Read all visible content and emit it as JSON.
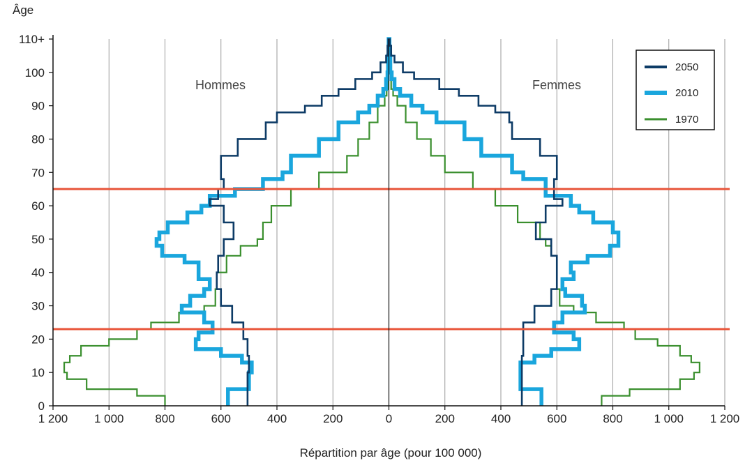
{
  "chart_data": {
    "type": "line",
    "title": "",
    "ylabel": "Âge",
    "xlabel": "Répartition par âge (pour 100 000)",
    "left_label": "Hommes",
    "right_label": "Femmes",
    "xlim": [
      -1200,
      1200
    ],
    "ylim": [
      0,
      110
    ],
    "x_ticks": [
      -1200,
      -1000,
      -800,
      -600,
      -400,
      -200,
      0,
      200,
      400,
      600,
      800,
      1000,
      1200
    ],
    "x_tick_labels": [
      "1 200",
      "1 000",
      "800",
      "600",
      "400",
      "200",
      "0",
      "200",
      "400",
      "600",
      "800",
      "1 000",
      "1 200"
    ],
    "y_ticks": [
      0,
      10,
      20,
      30,
      40,
      50,
      60,
      70,
      80,
      90,
      100,
      110
    ],
    "y_tick_labels": [
      "0",
      "10",
      "20",
      "30",
      "40",
      "50",
      "60",
      "70",
      "80",
      "90",
      "100",
      "110+"
    ],
    "grid": "vertical",
    "legend_position": "top-right",
    "reference_lines_age": [
      65,
      23
    ],
    "reference_line_color": "#e8553a",
    "series": [
      {
        "name": "2050",
        "color": "#0d3b66",
        "ages": [
          0,
          5,
          10,
          15,
          20,
          25,
          30,
          35,
          40,
          45,
          50,
          55,
          60,
          62,
          65,
          68,
          70,
          75,
          80,
          85,
          88,
          90,
          93,
          95,
          98,
          100,
          103,
          105,
          108,
          110
        ],
        "hommes": [
          505,
          505,
          500,
          505,
          520,
          560,
          600,
          615,
          610,
          590,
          555,
          590,
          640,
          610,
          590,
          600,
          600,
          540,
          440,
          400,
          300,
          240,
          180,
          120,
          60,
          30,
          10,
          5,
          2,
          0
        ],
        "femmes": [
          475,
          475,
          475,
          480,
          480,
          520,
          580,
          600,
          600,
          580,
          525,
          560,
          620,
          590,
          590,
          600,
          600,
          540,
          440,
          430,
          380,
          320,
          250,
          180,
          90,
          50,
          20,
          8,
          3,
          0
        ]
      },
      {
        "name": "2010",
        "color": "#1aa6dd",
        "ages": [
          0,
          5,
          10,
          13,
          15,
          17,
          20,
          22,
          25,
          28,
          30,
          33,
          35,
          38,
          40,
          43,
          45,
          48,
          50,
          52,
          55,
          58,
          60,
          63,
          65,
          68,
          70,
          75,
          80,
          85,
          88,
          90,
          93,
          95,
          98,
          100,
          105,
          110
        ],
        "hommes": [
          575,
          500,
          490,
          525,
          600,
          690,
          680,
          630,
          660,
          740,
          710,
          660,
          640,
          680,
          680,
          730,
          810,
          830,
          820,
          790,
          720,
          670,
          640,
          550,
          450,
          380,
          350,
          250,
          180,
          110,
          70,
          40,
          20,
          10,
          5,
          3,
          1,
          0
        ],
        "femmes": [
          545,
          470,
          470,
          520,
          580,
          680,
          660,
          590,
          620,
          700,
          690,
          630,
          620,
          660,
          650,
          710,
          790,
          820,
          820,
          800,
          730,
          680,
          650,
          560,
          560,
          480,
          440,
          330,
          270,
          170,
          120,
          80,
          40,
          20,
          10,
          5,
          2,
          0
        ]
      },
      {
        "name": "1970",
        "color": "#3a8f2e",
        "ages": [
          0,
          3,
          5,
          8,
          10,
          13,
          15,
          18,
          20,
          23,
          25,
          28,
          30,
          35,
          40,
          45,
          48,
          50,
          55,
          60,
          65,
          70,
          75,
          80,
          85,
          90,
          93,
          95,
          100,
          110
        ],
        "hommes": [
          800,
          900,
          1080,
          1150,
          1160,
          1140,
          1100,
          1000,
          900,
          850,
          750,
          660,
          620,
          615,
          580,
          530,
          470,
          450,
          420,
          350,
          250,
          150,
          110,
          70,
          40,
          15,
          8,
          4,
          1,
          0
        ],
        "femmes": [
          760,
          860,
          1040,
          1090,
          1110,
          1080,
          1040,
          960,
          880,
          840,
          740,
          660,
          610,
          600,
          600,
          580,
          560,
          540,
          460,
          380,
          300,
          200,
          150,
          100,
          60,
          30,
          15,
          8,
          2,
          0
        ]
      }
    ]
  }
}
